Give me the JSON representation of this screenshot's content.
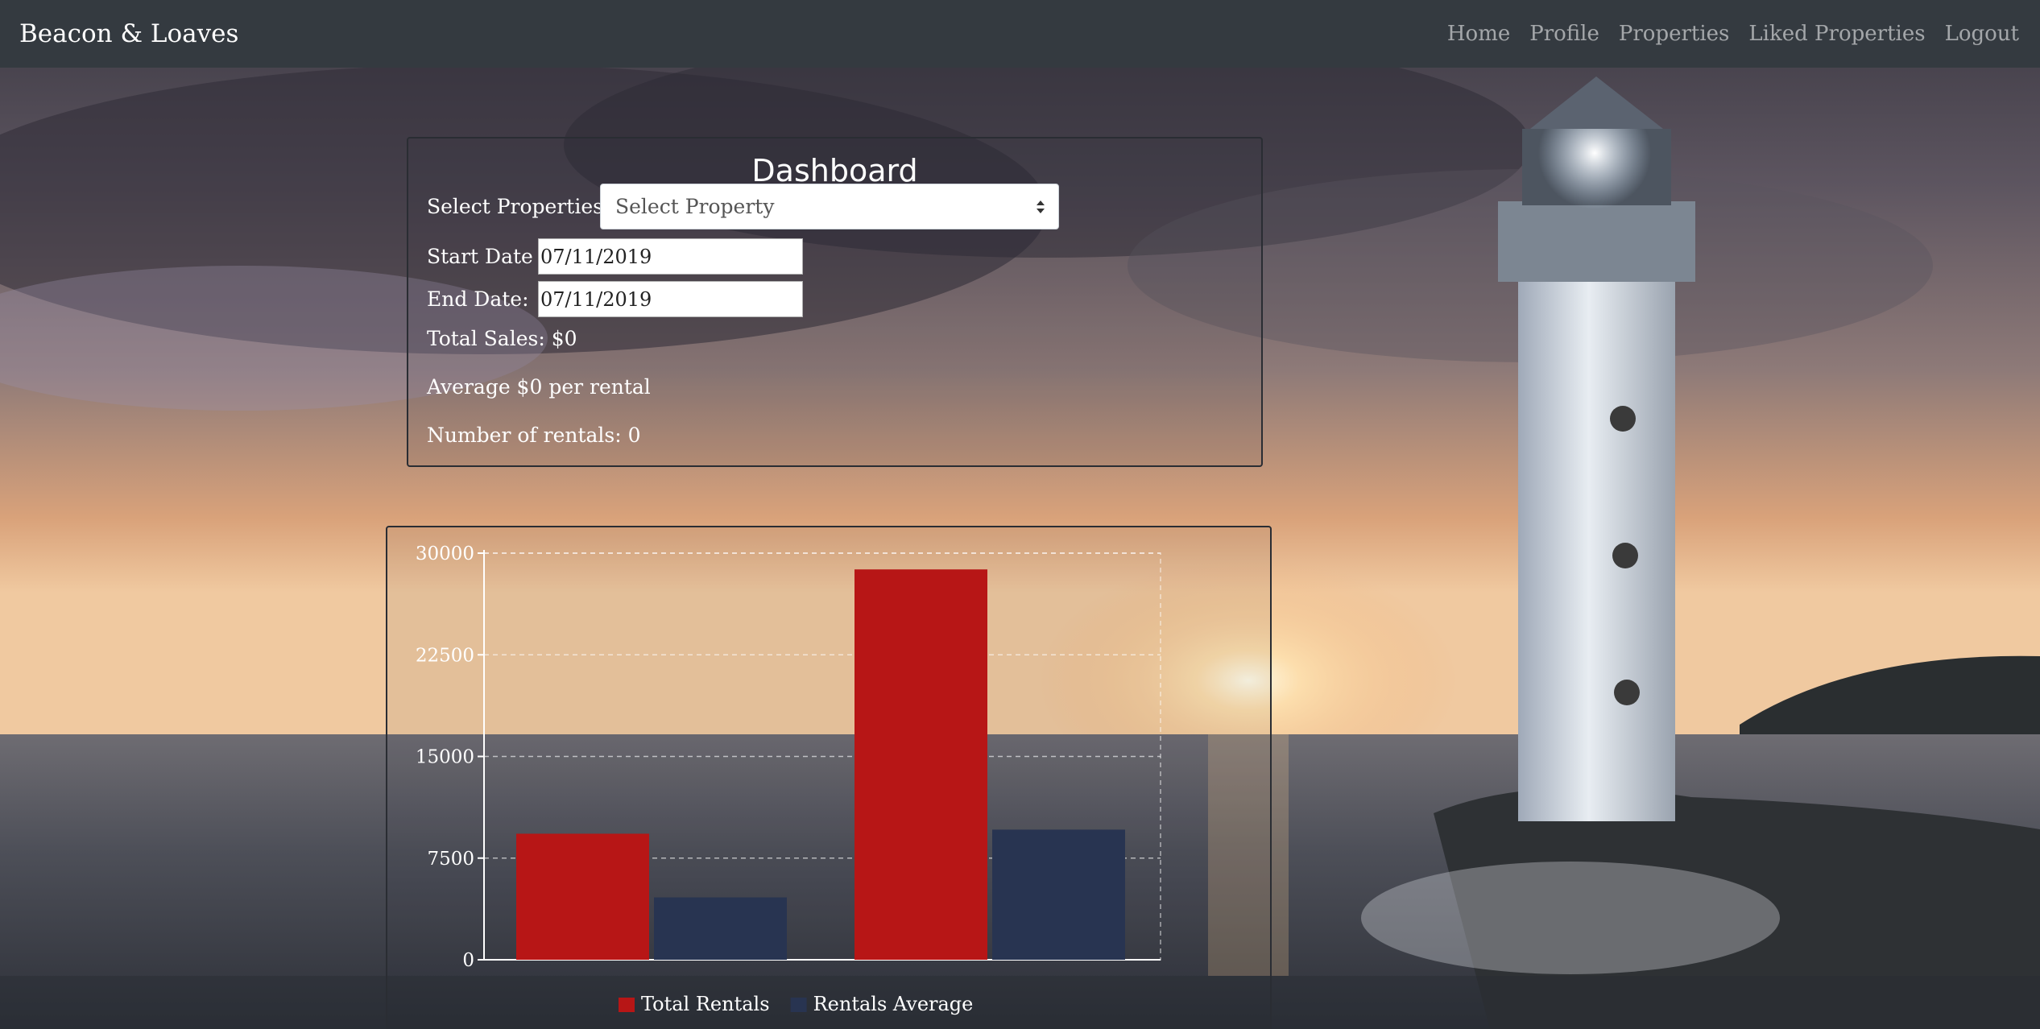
{
  "navbar": {
    "brand": "Beacon & Loaves",
    "links": [
      {
        "label": "Home"
      },
      {
        "label": "Profile"
      },
      {
        "label": "Properties"
      },
      {
        "label": "Liked Properties"
      },
      {
        "label": "Logout"
      }
    ]
  },
  "dashboard": {
    "title": "Dashboard",
    "select_label": "Select Properties:",
    "select_value": "Select Property",
    "start_label": "Start Date",
    "start_value": "07/11/2019",
    "end_label": "End Date:",
    "end_value": "07/11/2019",
    "total_sales": "Total Sales: $0",
    "average": "Average $0 per rental",
    "num_rentals": "Number of rentals: 0"
  },
  "colors": {
    "total_rentals": "#b71616",
    "rentals_average": "#283451",
    "navbar": "#343a40"
  },
  "chart_data": {
    "type": "bar",
    "categories": [
      "",
      ""
    ],
    "series": [
      {
        "name": "Total Rentals",
        "values": [
          9300,
          28800
        ]
      },
      {
        "name": "Rentals Average",
        "values": [
          4600,
          9600
        ]
      }
    ],
    "yticks": [
      "0",
      "7500",
      "15000",
      "22500",
      "30000"
    ],
    "ylim": [
      0,
      30000
    ],
    "grid": true,
    "legend": "bottom"
  }
}
